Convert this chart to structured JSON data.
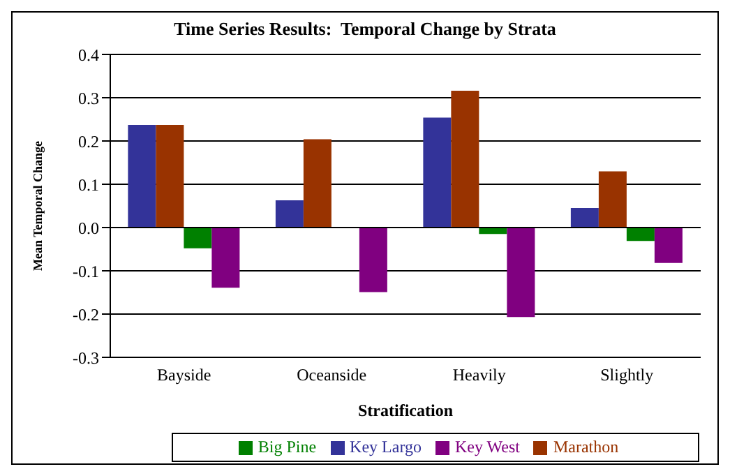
{
  "chart_data": {
    "type": "bar",
    "title": "Time Series Results:  Temporal Change by Strata",
    "xlabel": "Stratification",
    "ylabel": "Mean Temporal Change",
    "categories": [
      "Bayside",
      "Oceanside",
      "Heavily",
      "Slightly"
    ],
    "series": [
      {
        "name": "Key Largo",
        "color": "#333399",
        "values": [
          0.237,
          0.063,
          0.254,
          0.045
        ]
      },
      {
        "name": "Marathon",
        "color": "#993300",
        "values": [
          0.237,
          0.204,
          0.316,
          0.13
        ]
      },
      {
        "name": "Big Pine",
        "color": "#008000",
        "values": [
          -0.048,
          0,
          -0.015,
          -0.031
        ]
      },
      {
        "name": "Key West",
        "color": "#800080",
        "values": [
          -0.139,
          -0.149,
          -0.207,
          -0.082
        ]
      }
    ],
    "ylim": [
      -0.3,
      0.4
    ],
    "yticks": [
      {
        "value": -0.3,
        "label": "-0.3"
      },
      {
        "value": -0.2,
        "label": "-0.2"
      },
      {
        "value": -0.1,
        "label": "-0.1"
      },
      {
        "value": 0,
        "label": "0.0"
      },
      {
        "value": 0.1,
        "label": "0.1"
      },
      {
        "value": 0.2,
        "label": "0.2"
      },
      {
        "value": 0.3,
        "label": "0.3"
      },
      {
        "value": 0.4,
        "label": "0.4"
      }
    ],
    "grid": "y",
    "legend": "bottom"
  }
}
